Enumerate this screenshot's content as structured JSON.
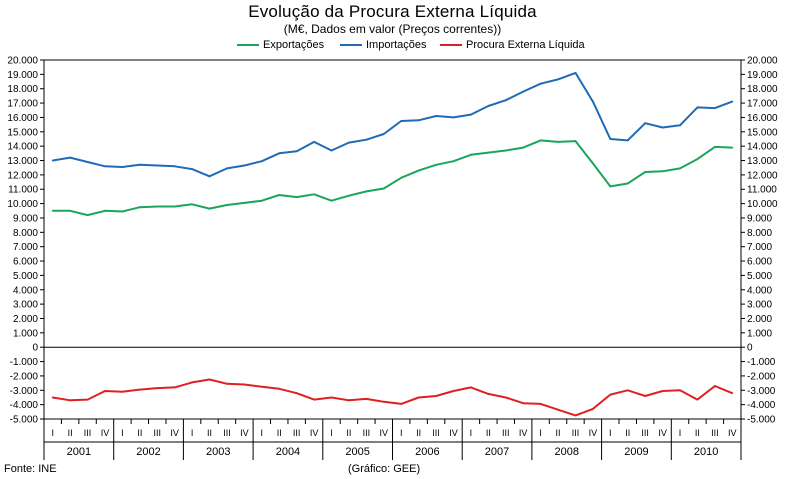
{
  "chart_data": {
    "type": "line",
    "title": "Evolução da Procura Externa Líquida",
    "subtitle": "(M€, Dados em valor (Preços correntes))",
    "xlabel": "",
    "ylabel": "",
    "ylim": [
      -5000,
      20000
    ],
    "y_ticks": [
      20000,
      19000,
      18000,
      17000,
      16000,
      15000,
      14000,
      13000,
      12000,
      11000,
      10000,
      9000,
      8000,
      7000,
      6000,
      5000,
      4000,
      3000,
      2000,
      1000,
      0,
      -1000,
      -2000,
      -3000,
      -4000,
      -5000
    ],
    "y_tick_labels": [
      "20.000",
      "19.000",
      "18.000",
      "17.000",
      "16.000",
      "15.000",
      "14.000",
      "13.000",
      "12.000",
      "11.000",
      "10.000",
      "9.000",
      "8.000",
      "7.000",
      "6.000",
      "5.000",
      "4.000",
      "3.000",
      "2.000",
      "1.000",
      "0",
      "-1.000",
      "-2.000",
      "-3.000",
      "-4.000",
      "-5.000"
    ],
    "quarter_labels": [
      "I",
      "II",
      "III",
      "IV"
    ],
    "years": [
      "2001",
      "2002",
      "2003",
      "2004",
      "2005",
      "2006",
      "2007",
      "2008",
      "2009",
      "2010"
    ],
    "series": [
      {
        "name": "Exportações",
        "color": "#1aa55a",
        "values": [
          9500,
          9500,
          9200,
          9500,
          9450,
          9750,
          9800,
          9800,
          9950,
          9650,
          9900,
          10050,
          10200,
          10600,
          10450,
          10650,
          10200,
          10550,
          10850,
          11050,
          11800,
          12300,
          12700,
          12950,
          13400,
          13550,
          13700,
          13900,
          14400,
          14300,
          14350,
          12800,
          11200,
          11400,
          12200,
          12250,
          12450,
          13100,
          13950,
          13900
        ]
      },
      {
        "name": "Importações",
        "color": "#1f6bb5",
        "values": [
          13000,
          13200,
          12900,
          12600,
          12550,
          12700,
          12650,
          12600,
          12400,
          11900,
          12450,
          12650,
          12950,
          13500,
          13650,
          14300,
          13700,
          14250,
          14450,
          14850,
          15750,
          15800,
          16100,
          16000,
          16200,
          16800,
          17200,
          17800,
          18350,
          18650,
          19100,
          17100,
          14500,
          14400,
          15600,
          15300,
          15450,
          16700,
          16650,
          17100
        ]
      },
      {
        "name": "Procura Externa Líquida",
        "color": "#e02020",
        "values": [
          -3500,
          -3700,
          -3650,
          -3050,
          -3100,
          -2950,
          -2850,
          -2800,
          -2450,
          -2250,
          -2550,
          -2600,
          -2750,
          -2900,
          -3200,
          -3650,
          -3500,
          -3700,
          -3600,
          -3800,
          -3950,
          -3500,
          -3400,
          -3050,
          -2800,
          -3250,
          -3500,
          -3900,
          -3950,
          -4350,
          -4750,
          -4300,
          -3300,
          -3000,
          -3400,
          -3050,
          -3000,
          -3650,
          -2700,
          -3200
        ]
      }
    ],
    "legend_position": "top-center"
  },
  "footer": {
    "source": "Fonte: INE",
    "credit": "(Gráfico: GEE)"
  }
}
